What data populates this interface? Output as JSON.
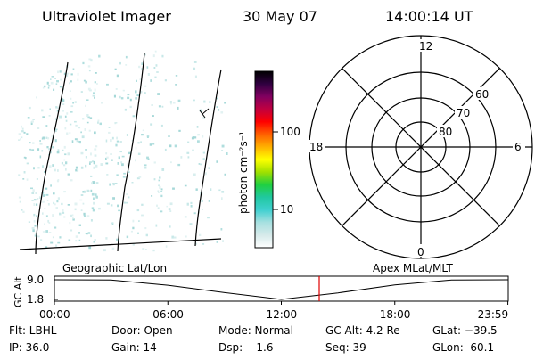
{
  "header": {
    "instrument": "Ultraviolet Imager",
    "date": "30 May 07",
    "time": "14:00:14 UT"
  },
  "colorbar": {
    "label": "photon cm⁻²s⁻¹",
    "ticks": [
      "100",
      "10"
    ],
    "colors": [
      "#ffffff",
      "#d6eaea",
      "#a8e0e0",
      "#40d0d0",
      "#20c8a0",
      "#20d040",
      "#a0e000",
      "#ffff00",
      "#ffb000",
      "#ff6000",
      "#ff0000",
      "#c00040",
      "#800060",
      "#300040",
      "#000000"
    ]
  },
  "polar_plot": {
    "mlt_labels": {
      "top": "12",
      "bottom": "0",
      "left": "18",
      "right": "6"
    },
    "lat_labels": [
      "60",
      "70",
      "80"
    ]
  },
  "timeline": {
    "left_title": "Geographic Lat/Lon",
    "right_title": "Apex MLat/MLT",
    "y_axis_label": "GC Alt",
    "y_ticks": [
      "9.0",
      "1.8"
    ],
    "x_ticks": [
      "00:00",
      "06:00",
      "12:00",
      "18:00",
      "23:59"
    ],
    "marker_color": "#e00000",
    "orbit_alt_re": [
      {
        "t": 0,
        "alt": 9.0
      },
      {
        "t": 3,
        "alt": 8.9
      },
      {
        "t": 6,
        "alt": 7.0
      },
      {
        "t": 9,
        "alt": 4.3
      },
      {
        "t": 12,
        "alt": 1.8
      },
      {
        "t": 15,
        "alt": 4.2
      },
      {
        "t": 18,
        "alt": 7.1
      },
      {
        "t": 21,
        "alt": 8.9
      },
      {
        "t": 23.98,
        "alt": 9.0
      }
    ]
  },
  "info": {
    "flt": "Flt: LBHL",
    "door": "Door: Open",
    "mode": "Mode: Normal",
    "gc_alt": "GC Alt: 4.2 Re",
    "glat": "GLat: −39.5",
    "ip": "IP: 36.0",
    "gain": "Gain: 14",
    "dsp": "Dsp:    1.6",
    "seq": "Seq: 39",
    "glon": "GLon:  60.1"
  }
}
